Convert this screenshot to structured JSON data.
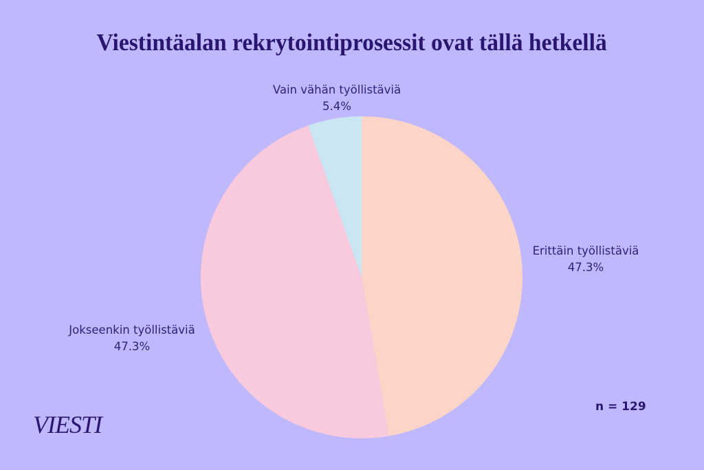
{
  "header": {
    "title": "Viestintäalan rekrytointiprosessit ovat tällä hetkellä"
  },
  "chart_data": {
    "type": "pie",
    "title": "Viestintäalan rekrytointiprosessit ovat tällä hetkellä",
    "slices": [
      {
        "label": "Erittäin työllistäviä",
        "value": 47.3,
        "value_label": "47.3%",
        "color": "#fdd5c8"
      },
      {
        "label": "Jokseenkin työllistäviä",
        "value": 47.3,
        "value_label": "47.3%",
        "color": "#f9c9dd"
      },
      {
        "label": "Vain vähän työllistäviä",
        "value": 5.4,
        "value_label": "5.4%",
        "color": "#c9e6f2"
      }
    ],
    "start_angle": "12 o'clock, clockwise",
    "legend": "none (direct labels)",
    "sample_size": "n = 129"
  },
  "footer": {
    "n_label": "n = 129",
    "logo": "VIESTI"
  },
  "colors": {
    "background": "#c0b8fc",
    "text": "#2a1670"
  }
}
